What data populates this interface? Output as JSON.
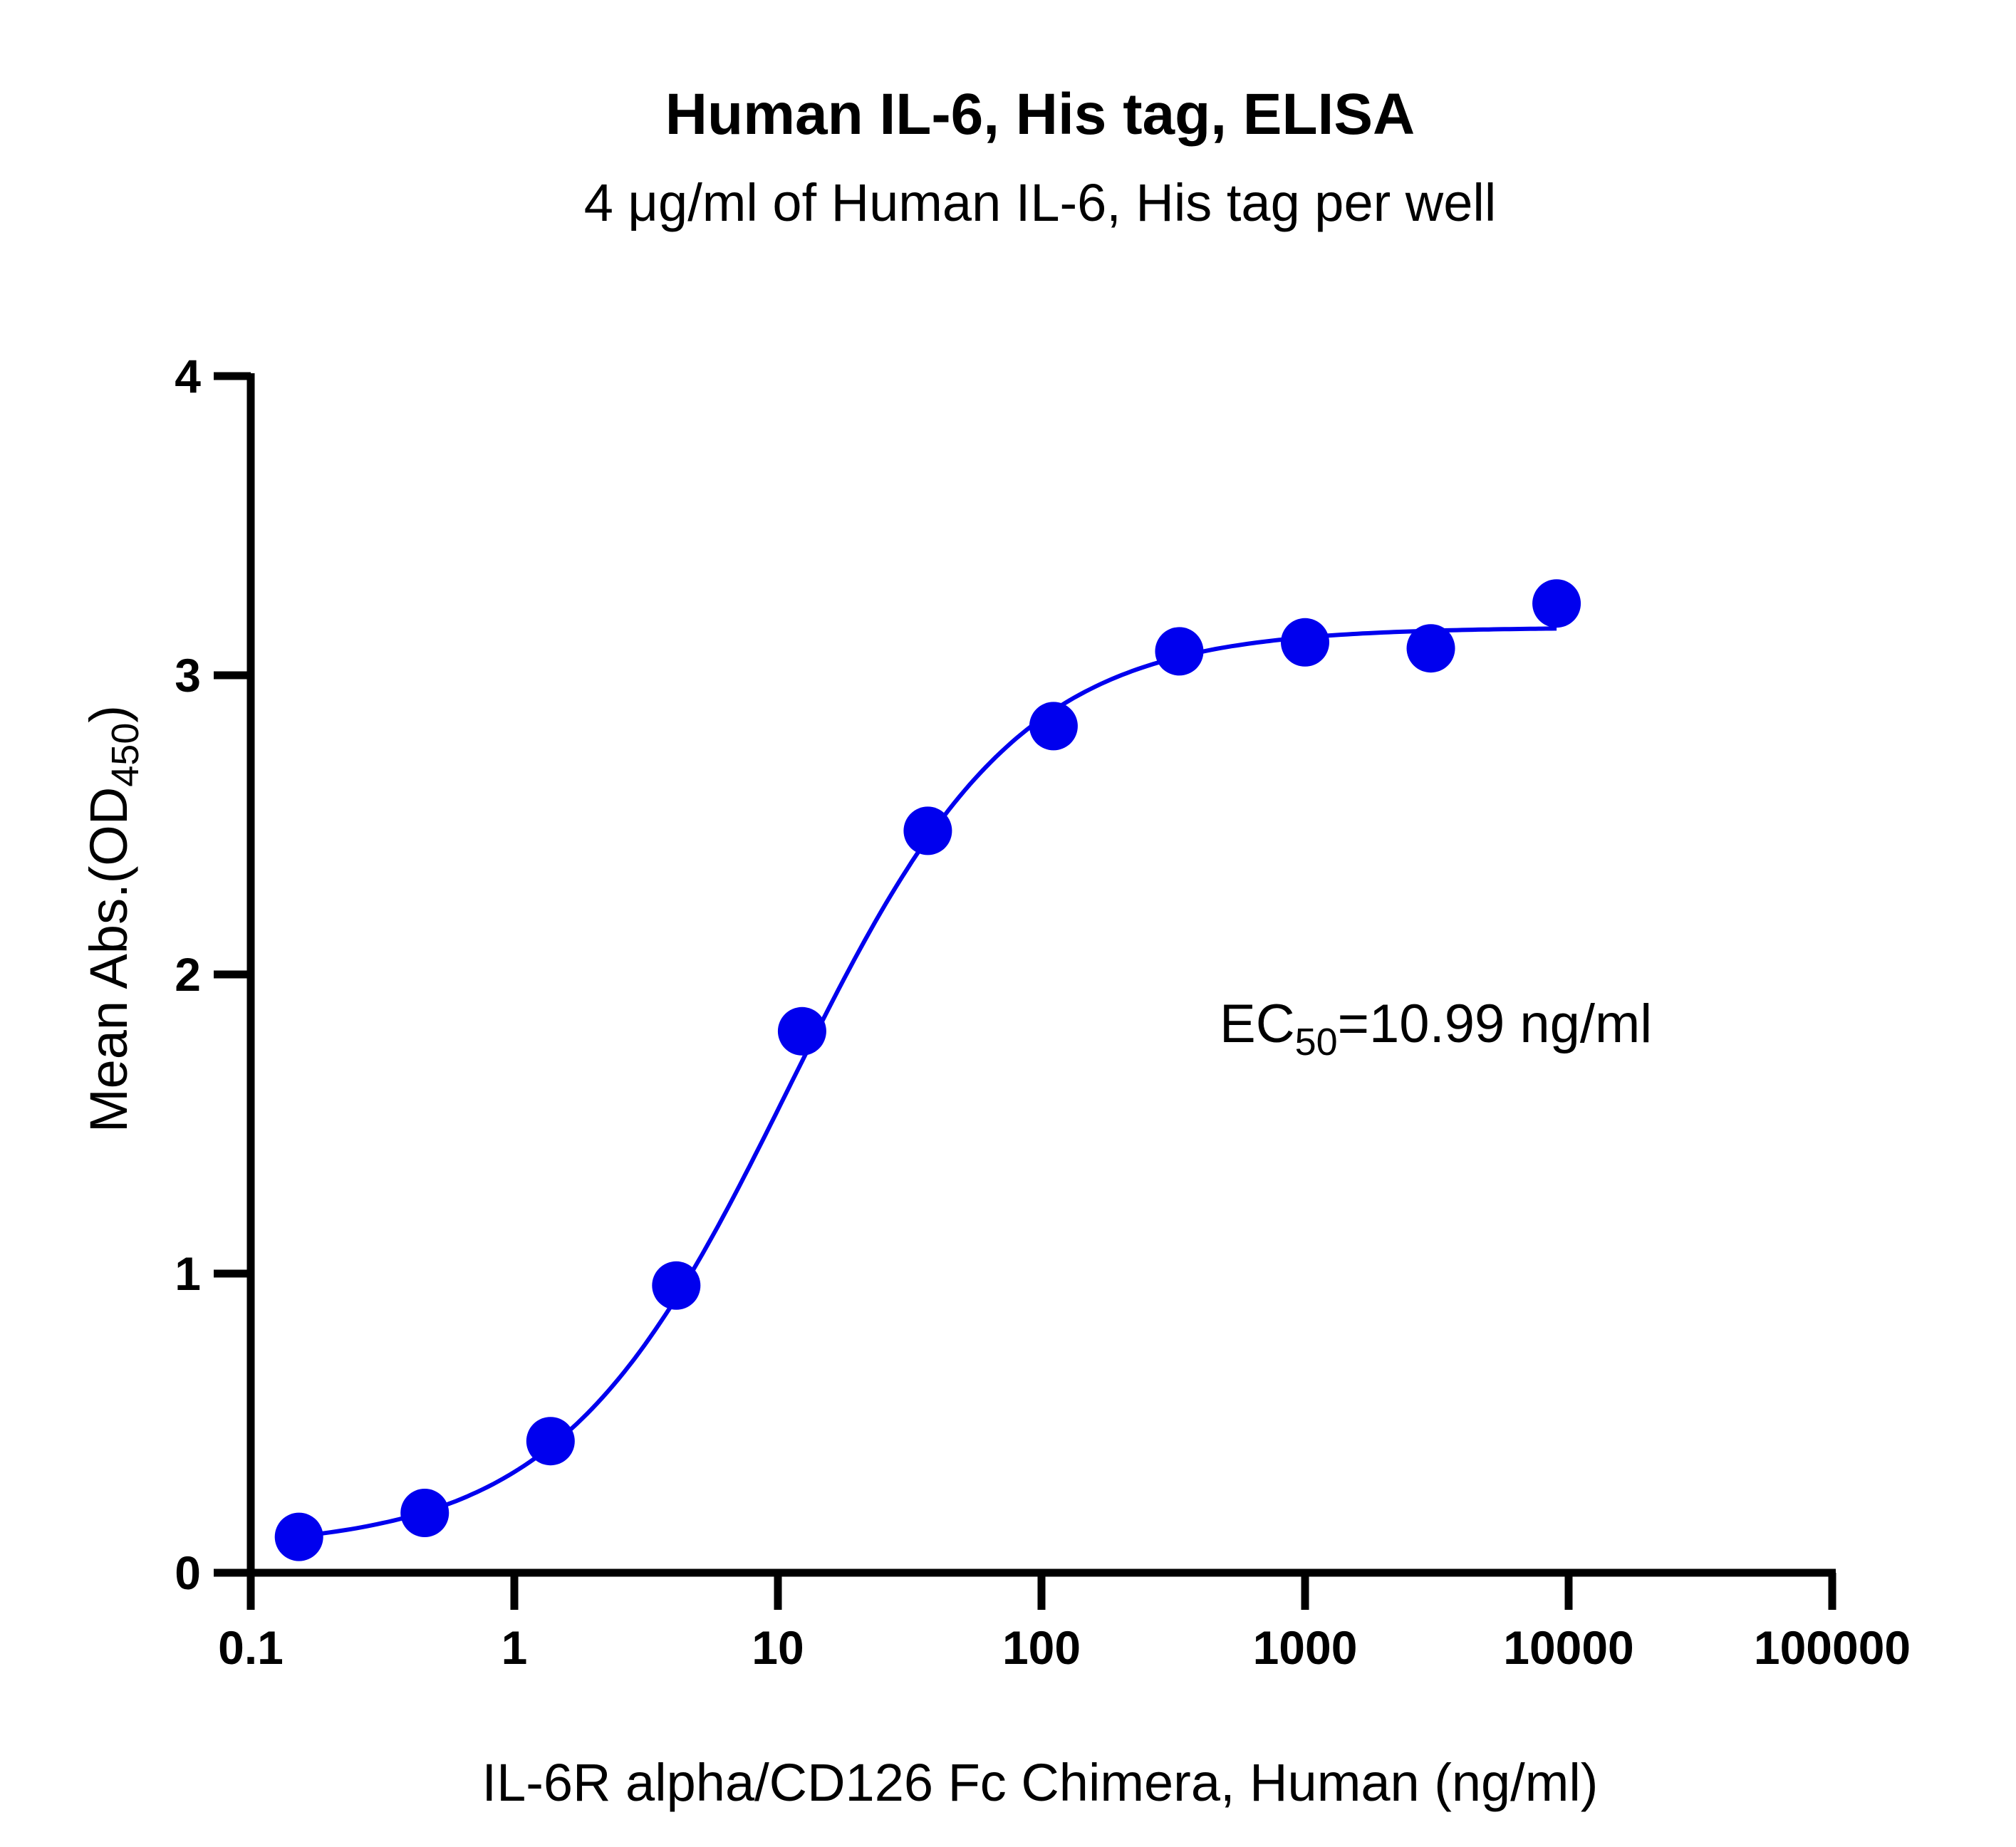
{
  "chart_data": {
    "type": "scatter",
    "title": "Human IL-6, His tag, ELISA",
    "subtitle": "4 μg/ml of Human IL-6, His tag per well",
    "xlabel": "IL-6R alpha/CD126 Fc Chimera, Human (ng/ml)",
    "ylabel": {
      "main": "Mean Abs.(OD",
      "sub": "450",
      "end": ")"
    },
    "x_scale": "log",
    "xlim": [
      0.1,
      100000
    ],
    "ylim": [
      0,
      4
    ],
    "x_ticks": [
      {
        "value": 0.1,
        "label": "0.1"
      },
      {
        "value": 1,
        "label": "1"
      },
      {
        "value": 10,
        "label": "10"
      },
      {
        "value": 100,
        "label": "100"
      },
      {
        "value": 1000,
        "label": "1000"
      },
      {
        "value": 10000,
        "label": "10000"
      },
      {
        "value": 100000,
        "label": "100000"
      }
    ],
    "y_ticks": [
      {
        "value": 0,
        "label": "0"
      },
      {
        "value": 1,
        "label": "1"
      },
      {
        "value": 2,
        "label": "2"
      },
      {
        "value": 3,
        "label": "3"
      },
      {
        "value": 4,
        "label": "4"
      }
    ],
    "grid": false,
    "series": [
      {
        "color": "#0000ee",
        "x": [
          0.1524,
          0.4572,
          1.372,
          4.115,
          12.35,
          37.04,
          111.1,
          333.3,
          1000,
          3000,
          9000
        ],
        "y": [
          0.12,
          0.2,
          0.44,
          0.96,
          1.81,
          2.48,
          2.83,
          3.08,
          3.11,
          3.09,
          3.24
        ]
      }
    ],
    "fit": {
      "type": "4PL",
      "color": "#0000ee",
      "bottom": 0.08,
      "top": 3.16,
      "ec50": 10.99,
      "hill": 1.0,
      "x_range": [
        0.1524,
        9000
      ]
    },
    "annotation": {
      "main": "EC",
      "sub": "50",
      "rest": "=10.99 ng/ml"
    }
  }
}
